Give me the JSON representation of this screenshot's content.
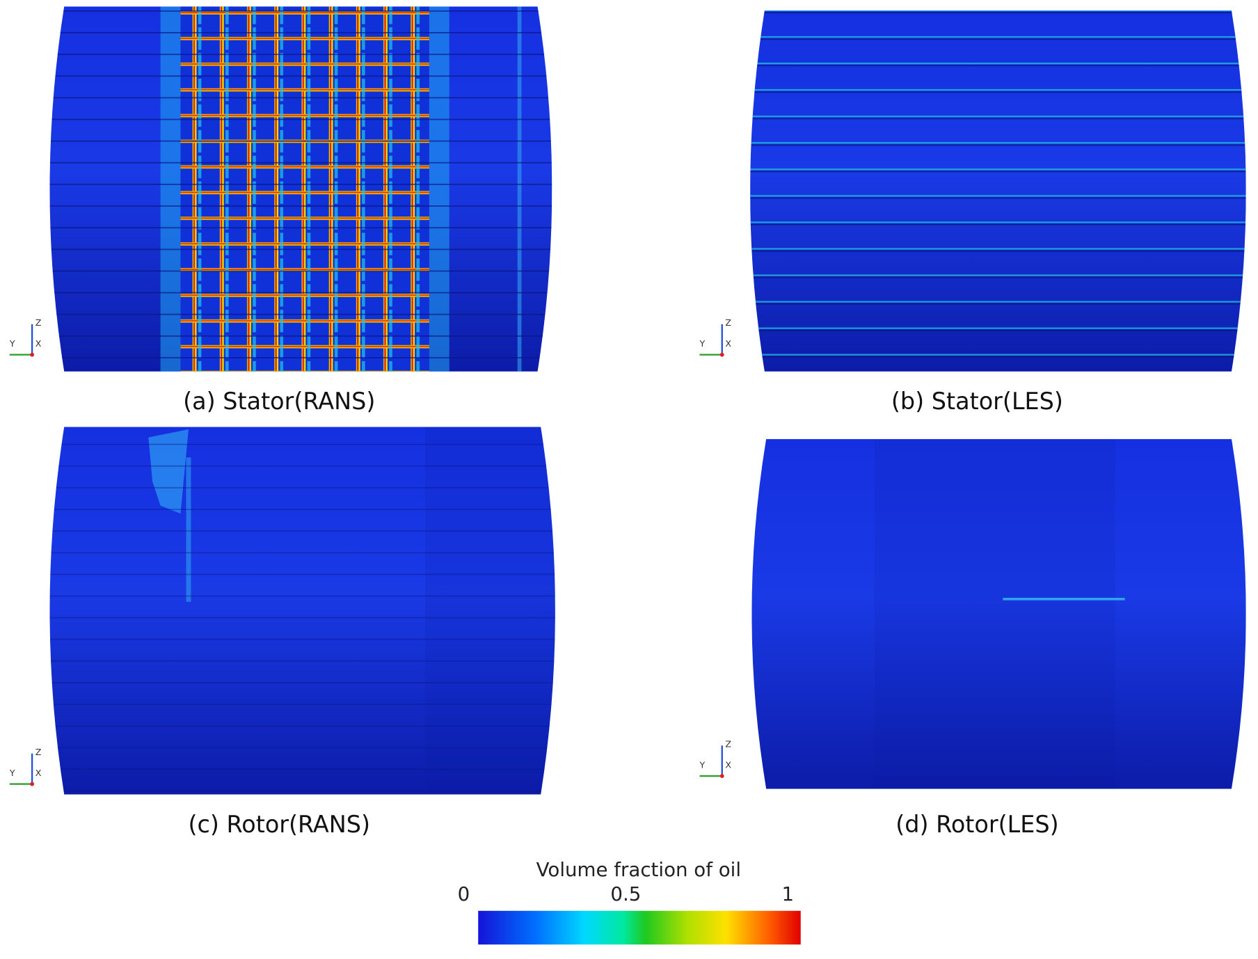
{
  "panels": [
    {
      "caption": "(a) Stator(RANS)",
      "axes": {
        "z": "Z",
        "x": "X",
        "y": "Y"
      }
    },
    {
      "caption": "(b) Stator(LES)",
      "axes": {
        "z": "Z",
        "x": "X",
        "y": "Y"
      }
    },
    {
      "caption": "(c) Rotor(RANS)",
      "axes": {
        "z": "Z",
        "x": "X",
        "y": "Y"
      }
    },
    {
      "caption": "(d) Rotor(LES)",
      "axes": {
        "z": "Z",
        "x": "X",
        "y": "Y"
      }
    }
  ],
  "colorbar": {
    "title": "Volume fraction of oil",
    "ticks": [
      0,
      0.5,
      1
    ]
  }
}
